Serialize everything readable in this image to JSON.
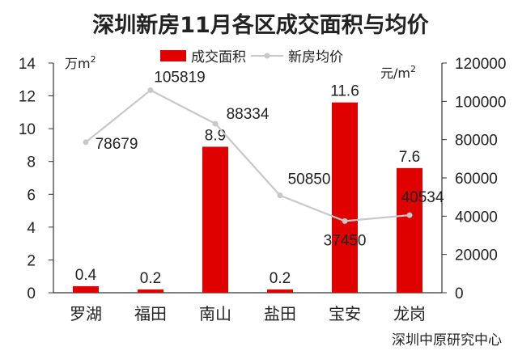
{
  "chart_data": {
    "type": "bar",
    "title": "深圳新房11月各区成交面积与均价",
    "categories": [
      "罗湖",
      "福田",
      "南山",
      "盐田",
      "宝安",
      "龙岗"
    ],
    "series": [
      {
        "name": "成交面积",
        "type": "bar",
        "axis": "left",
        "color": "#e00000",
        "values": [
          0.4,
          0.2,
          8.9,
          0.2,
          11.6,
          7.6
        ]
      },
      {
        "name": "新房均价",
        "type": "line",
        "axis": "right",
        "color": "#c8c8c8",
        "values": [
          78679,
          105819,
          88334,
          50850,
          37450,
          40534
        ]
      }
    ],
    "y_left": {
      "unit": "万m",
      "unit_sup": "2",
      "ylim": [
        0,
        14
      ],
      "ticks": [
        "0",
        "2",
        "4",
        "6",
        "8",
        "10",
        "12",
        "14"
      ]
    },
    "y_right": {
      "unit": "元/m",
      "unit_sup": "2",
      "ylim": [
        0,
        120000
      ],
      "ticks": [
        "0",
        "20000",
        "40000",
        "60000",
        "80000",
        "100000",
        "120000"
      ]
    },
    "bar_labels": [
      "0.4",
      "0.2",
      "8.9",
      "0.2",
      "11.6",
      "7.6"
    ],
    "line_labels": [
      "78679",
      "105819",
      "88334",
      "50850",
      "37450",
      "40534"
    ],
    "legend_position": "top-center",
    "grid": false,
    "source": "深圳中原研究中心"
  }
}
